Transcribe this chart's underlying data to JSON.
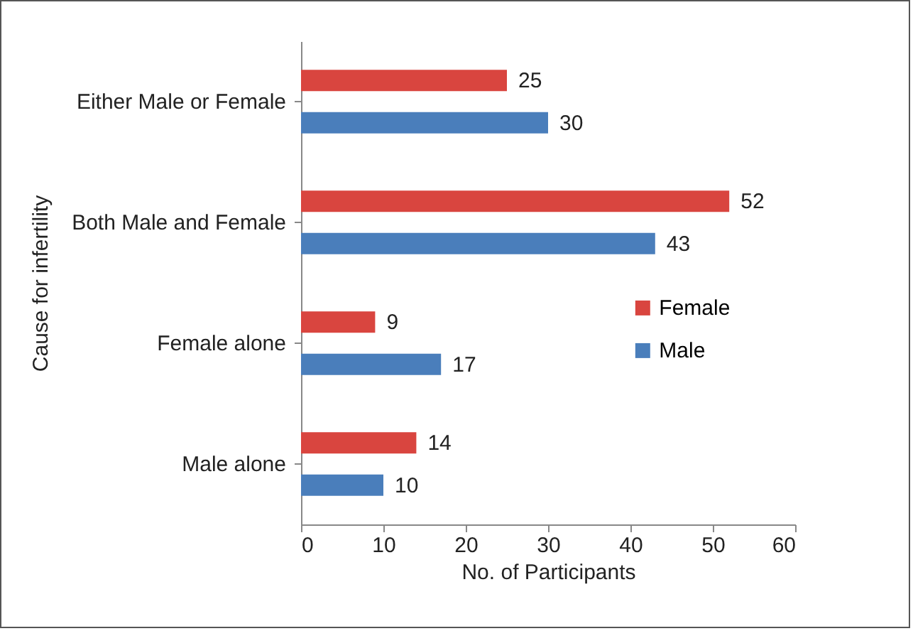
{
  "chart_data": {
    "type": "bar",
    "orientation": "horizontal",
    "xlabel": "No. of Participants",
    "ylabel": "Cause for infertility",
    "categories": [
      "Either Male or Female",
      "Both Male and Female",
      "Female alone",
      "Male alone"
    ],
    "series": [
      {
        "name": "Female",
        "color": "#d9453f",
        "values": [
          25,
          52,
          9,
          14
        ]
      },
      {
        "name": "Male",
        "color": "#4a7ebb",
        "values": [
          30,
          43,
          17,
          10
        ]
      }
    ],
    "xlim": [
      0,
      60
    ],
    "xticks": [
      0,
      10,
      20,
      30,
      40,
      50,
      60
    ],
    "data_labels": true,
    "legend": "right"
  }
}
